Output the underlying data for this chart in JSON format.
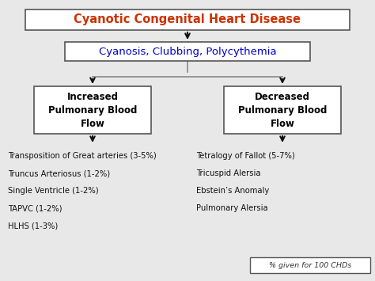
{
  "title": "Cyanotic Congenital Heart Disease",
  "title_color": "#cc3300",
  "subtitle": "Cyanosis, Clubbing, Polycythemia",
  "subtitle_color": "#0000cc",
  "left_box": "Increased\nPulmonary Blood\nFlow",
  "right_box": "Decreased\nPulmonary Blood\nFlow",
  "box_text_color": "#000000",
  "left_items": [
    "Transposition of Great arteries (3-5%)",
    "Truncus Arteriosus (1-2%)",
    "Single Ventricle (1-2%)",
    "TAPVC (1-2%)",
    "HLHS (1-3%)"
  ],
  "right_items": [
    "Tetralogy of Fallot (5-7%)",
    "Tricuspid Alersia",
    "Ebstein’s Anomaly",
    "Pulmonary Alersia"
  ],
  "footnote": "% given for 100 CHDs",
  "background_color": "#e8e8e8",
  "box_edge_color": "#555555",
  "arrow_color": "#111111",
  "line_color": "#888888"
}
